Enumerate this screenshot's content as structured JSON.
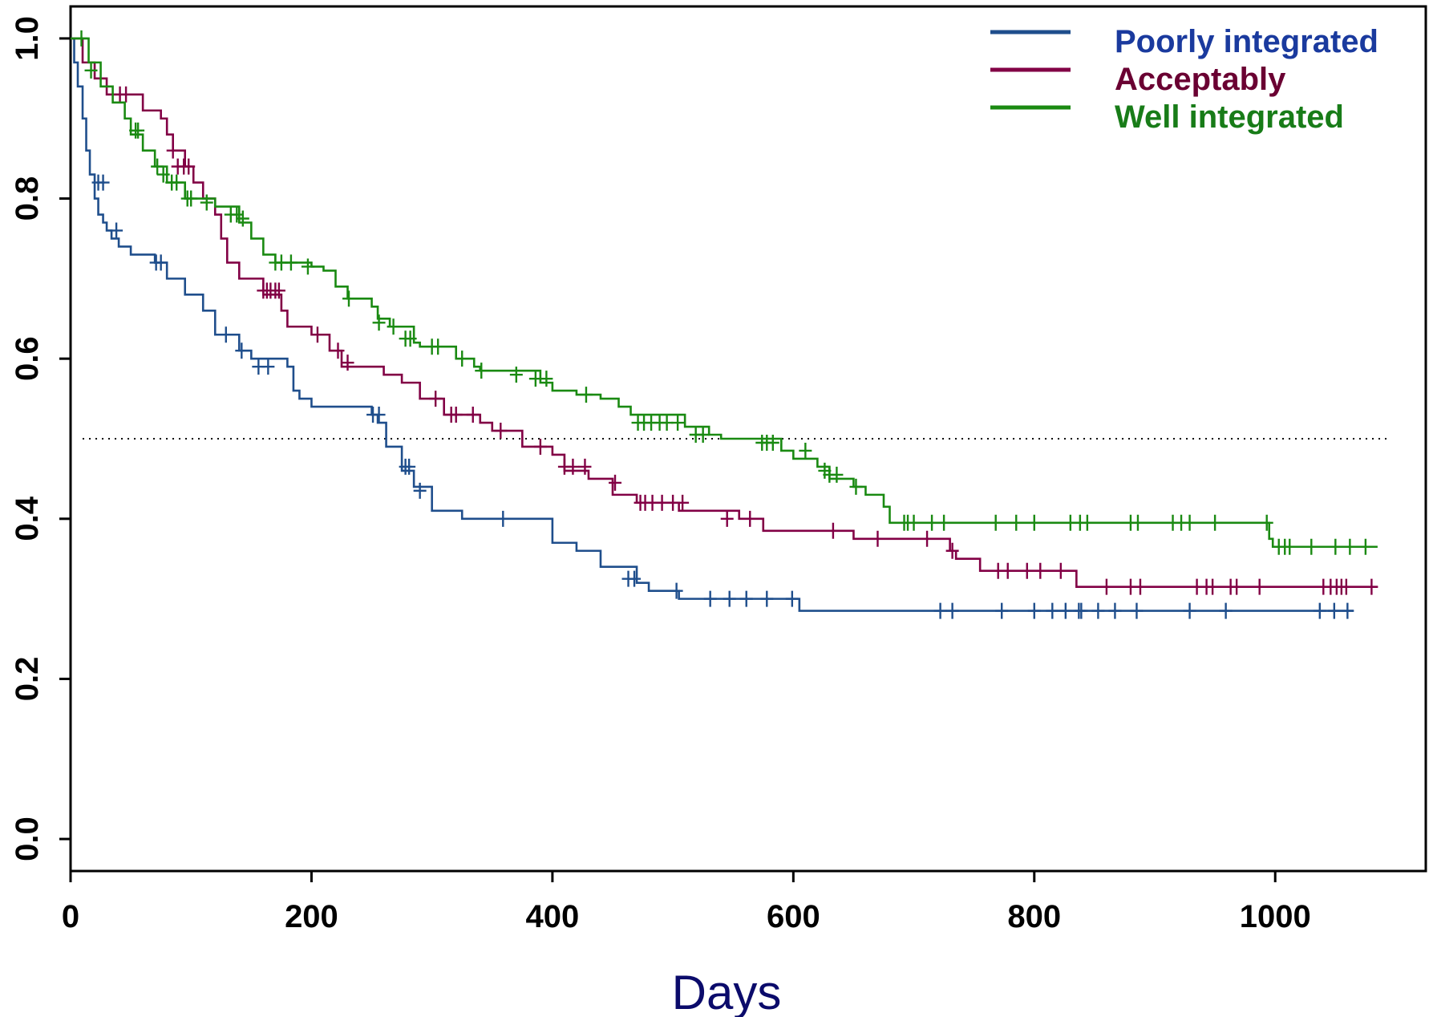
{
  "chart_data": {
    "type": "line",
    "xlabel": "Days",
    "ylabel": "",
    "xlim": [
      0,
      1125
    ],
    "ylim": [
      -0.04,
      1.04
    ],
    "x_ticks": [
      0,
      200,
      400,
      600,
      800,
      1000
    ],
    "x_tick_labels": [
      "0",
      "200",
      "400",
      "600",
      "800",
      "1000"
    ],
    "y_ticks": [
      0.0,
      0.2,
      0.4,
      0.6,
      0.8,
      1.0
    ],
    "y_tick_labels": [
      "0.0",
      "0.2",
      "0.4",
      "0.6",
      "0.8",
      "1.0"
    ],
    "grid": false,
    "legend_position": "top-right",
    "reference_line": {
      "y": 0.5,
      "style": "dotted"
    },
    "series": [
      {
        "name": "Poorly integrated",
        "color": "#1f4e8c",
        "label_color": "#1a3a9e",
        "steps": [
          [
            0,
            1.0
          ],
          [
            3,
            0.97
          ],
          [
            6,
            0.94
          ],
          [
            10,
            0.9
          ],
          [
            13,
            0.86
          ],
          [
            16,
            0.83
          ],
          [
            20,
            0.8
          ],
          [
            23,
            0.78
          ],
          [
            27,
            0.77
          ],
          [
            30,
            0.76
          ],
          [
            34,
            0.75
          ],
          [
            40,
            0.74
          ],
          [
            50,
            0.73
          ],
          [
            70,
            0.72
          ],
          [
            80,
            0.7
          ],
          [
            95,
            0.68
          ],
          [
            110,
            0.66
          ],
          [
            120,
            0.63
          ],
          [
            140,
            0.61
          ],
          [
            150,
            0.6
          ],
          [
            180,
            0.59
          ],
          [
            185,
            0.56
          ],
          [
            190,
            0.55
          ],
          [
            200,
            0.54
          ],
          [
            250,
            0.53
          ],
          [
            255,
            0.52
          ],
          [
            262,
            0.49
          ],
          [
            275,
            0.46
          ],
          [
            285,
            0.44
          ],
          [
            300,
            0.41
          ],
          [
            325,
            0.4
          ],
          [
            400,
            0.37
          ],
          [
            420,
            0.36
          ],
          [
            440,
            0.34
          ],
          [
            470,
            0.32
          ],
          [
            480,
            0.31
          ],
          [
            505,
            0.3
          ],
          [
            605,
            0.285
          ],
          [
            1065,
            0.285
          ]
        ],
        "censored": [
          [
            23,
            0.82
          ],
          [
            27,
            0.82
          ],
          [
            38,
            0.76
          ],
          [
            71,
            0.72
          ],
          [
            75,
            0.72
          ],
          [
            129,
            0.63
          ],
          [
            142,
            0.61
          ],
          [
            156,
            0.59
          ],
          [
            164,
            0.59
          ],
          [
            251,
            0.53
          ],
          [
            256,
            0.53
          ],
          [
            278,
            0.465
          ],
          [
            281,
            0.465
          ],
          [
            290,
            0.435
          ],
          [
            359,
            0.4
          ],
          [
            463,
            0.325
          ],
          [
            468,
            0.325
          ],
          [
            503,
            0.31
          ],
          [
            531,
            0.3
          ],
          [
            547,
            0.3
          ],
          [
            561,
            0.3
          ],
          [
            578,
            0.3
          ],
          [
            599,
            0.3
          ],
          [
            722,
            0.285
          ],
          [
            732,
            0.285
          ],
          [
            773,
            0.285
          ],
          [
            800,
            0.285
          ],
          [
            815,
            0.285
          ],
          [
            826,
            0.285
          ],
          [
            837,
            0.285
          ],
          [
            839,
            0.285
          ],
          [
            853,
            0.285
          ],
          [
            867,
            0.285
          ],
          [
            885,
            0.285
          ],
          [
            929,
            0.285
          ],
          [
            959,
            0.285
          ],
          [
            1037,
            0.285
          ],
          [
            1049,
            0.285
          ],
          [
            1060,
            0.285
          ]
        ]
      },
      {
        "name": "Acceptably",
        "color": "#820045",
        "label_color": "#6a0032",
        "steps": [
          [
            0,
            1.0
          ],
          [
            10,
            0.97
          ],
          [
            20,
            0.95
          ],
          [
            30,
            0.93
          ],
          [
            60,
            0.91
          ],
          [
            75,
            0.9
          ],
          [
            80,
            0.88
          ],
          [
            85,
            0.86
          ],
          [
            95,
            0.84
          ],
          [
            102,
            0.82
          ],
          [
            110,
            0.8
          ],
          [
            120,
            0.78
          ],
          [
            125,
            0.75
          ],
          [
            130,
            0.72
          ],
          [
            140,
            0.7
          ],
          [
            160,
            0.68
          ],
          [
            175,
            0.66
          ],
          [
            180,
            0.64
          ],
          [
            200,
            0.63
          ],
          [
            215,
            0.61
          ],
          [
            225,
            0.59
          ],
          [
            260,
            0.58
          ],
          [
            275,
            0.57
          ],
          [
            290,
            0.55
          ],
          [
            310,
            0.53
          ],
          [
            340,
            0.52
          ],
          [
            350,
            0.51
          ],
          [
            375,
            0.49
          ],
          [
            400,
            0.48
          ],
          [
            410,
            0.46
          ],
          [
            430,
            0.45
          ],
          [
            450,
            0.43
          ],
          [
            470,
            0.42
          ],
          [
            505,
            0.41
          ],
          [
            555,
            0.4
          ],
          [
            575,
            0.385
          ],
          [
            650,
            0.375
          ],
          [
            730,
            0.36
          ],
          [
            735,
            0.35
          ],
          [
            755,
            0.335
          ],
          [
            835,
            0.315
          ],
          [
            1085,
            0.315
          ]
        ],
        "censored": [
          [
            41,
            0.93
          ],
          [
            46,
            0.93
          ],
          [
            85,
            0.86
          ],
          [
            89,
            0.84
          ],
          [
            94,
            0.84
          ],
          [
            98,
            0.84
          ],
          [
            160,
            0.685
          ],
          [
            163,
            0.685
          ],
          [
            166,
            0.685
          ],
          [
            170,
            0.685
          ],
          [
            173,
            0.685
          ],
          [
            205,
            0.63
          ],
          [
            222,
            0.61
          ],
          [
            230,
            0.595
          ],
          [
            303,
            0.55
          ],
          [
            316,
            0.53
          ],
          [
            320,
            0.53
          ],
          [
            334,
            0.53
          ],
          [
            357,
            0.51
          ],
          [
            390,
            0.49
          ],
          [
            410,
            0.465
          ],
          [
            417,
            0.465
          ],
          [
            427,
            0.465
          ],
          [
            452,
            0.445
          ],
          [
            473,
            0.42
          ],
          [
            477,
            0.42
          ],
          [
            483,
            0.42
          ],
          [
            491,
            0.42
          ],
          [
            500,
            0.42
          ],
          [
            508,
            0.42
          ],
          [
            545,
            0.4
          ],
          [
            564,
            0.4
          ],
          [
            633,
            0.385
          ],
          [
            670,
            0.375
          ],
          [
            711,
            0.375
          ],
          [
            732,
            0.36
          ],
          [
            770,
            0.335
          ],
          [
            778,
            0.335
          ],
          [
            794,
            0.335
          ],
          [
            805,
            0.335
          ],
          [
            822,
            0.335
          ],
          [
            860,
            0.315
          ],
          [
            880,
            0.315
          ],
          [
            888,
            0.315
          ],
          [
            935,
            0.315
          ],
          [
            943,
            0.315
          ],
          [
            948,
            0.315
          ],
          [
            963,
            0.315
          ],
          [
            968,
            0.315
          ],
          [
            987,
            0.315
          ],
          [
            1040,
            0.315
          ],
          [
            1046,
            0.315
          ],
          [
            1051,
            0.315
          ],
          [
            1055,
            0.315
          ],
          [
            1059,
            0.315
          ],
          [
            1080,
            0.315
          ]
        ]
      },
      {
        "name": "Well integrated",
        "color": "#1a8a12",
        "label_color": "#187c18",
        "steps": [
          [
            0,
            1.0
          ],
          [
            15,
            0.97
          ],
          [
            25,
            0.94
          ],
          [
            35,
            0.92
          ],
          [
            45,
            0.9
          ],
          [
            50,
            0.88
          ],
          [
            60,
            0.86
          ],
          [
            70,
            0.84
          ],
          [
            80,
            0.82
          ],
          [
            95,
            0.8
          ],
          [
            120,
            0.79
          ],
          [
            140,
            0.77
          ],
          [
            150,
            0.75
          ],
          [
            160,
            0.73
          ],
          [
            170,
            0.72
          ],
          [
            200,
            0.715
          ],
          [
            210,
            0.71
          ],
          [
            220,
            0.69
          ],
          [
            230,
            0.675
          ],
          [
            250,
            0.665
          ],
          [
            255,
            0.65
          ],
          [
            265,
            0.64
          ],
          [
            285,
            0.62
          ],
          [
            290,
            0.615
          ],
          [
            320,
            0.6
          ],
          [
            335,
            0.59
          ],
          [
            340,
            0.585
          ],
          [
            390,
            0.57
          ],
          [
            400,
            0.56
          ],
          [
            420,
            0.555
          ],
          [
            440,
            0.55
          ],
          [
            455,
            0.54
          ],
          [
            465,
            0.53
          ],
          [
            510,
            0.515
          ],
          [
            530,
            0.505
          ],
          [
            540,
            0.5
          ],
          [
            590,
            0.485
          ],
          [
            600,
            0.475
          ],
          [
            620,
            0.465
          ],
          [
            630,
            0.45
          ],
          [
            650,
            0.44
          ],
          [
            660,
            0.43
          ],
          [
            675,
            0.415
          ],
          [
            680,
            0.395
          ],
          [
            995,
            0.375
          ],
          [
            998,
            0.365
          ],
          [
            1085,
            0.365
          ]
        ],
        "censored": [
          [
            9,
            1.0
          ],
          [
            17,
            0.96
          ],
          [
            54,
            0.885
          ],
          [
            56,
            0.885
          ],
          [
            72,
            0.84
          ],
          [
            77,
            0.83
          ],
          [
            84,
            0.82
          ],
          [
            88,
            0.82
          ],
          [
            97,
            0.8
          ],
          [
            100,
            0.8
          ],
          [
            113,
            0.795
          ],
          [
            133,
            0.78
          ],
          [
            138,
            0.78
          ],
          [
            143,
            0.775
          ],
          [
            170,
            0.72
          ],
          [
            175,
            0.72
          ],
          [
            183,
            0.72
          ],
          [
            197,
            0.715
          ],
          [
            231,
            0.675
          ],
          [
            256,
            0.645
          ],
          [
            268,
            0.64
          ],
          [
            278,
            0.625
          ],
          [
            282,
            0.625
          ],
          [
            300,
            0.615
          ],
          [
            305,
            0.615
          ],
          [
            325,
            0.6
          ],
          [
            341,
            0.585
          ],
          [
            370,
            0.58
          ],
          [
            386,
            0.575
          ],
          [
            395,
            0.575
          ],
          [
            428,
            0.555
          ],
          [
            471,
            0.52
          ],
          [
            476,
            0.52
          ],
          [
            482,
            0.52
          ],
          [
            489,
            0.52
          ],
          [
            495,
            0.52
          ],
          [
            504,
            0.52
          ],
          [
            519,
            0.505
          ],
          [
            525,
            0.505
          ],
          [
            574,
            0.495
          ],
          [
            578,
            0.495
          ],
          [
            583,
            0.495
          ],
          [
            610,
            0.485
          ],
          [
            626,
            0.46
          ],
          [
            630,
            0.455
          ],
          [
            636,
            0.455
          ],
          [
            652,
            0.44
          ],
          [
            692,
            0.395
          ],
          [
            695,
            0.395
          ],
          [
            700,
            0.395
          ],
          [
            715,
            0.395
          ],
          [
            725,
            0.395
          ],
          [
            768,
            0.395
          ],
          [
            785,
            0.395
          ],
          [
            800,
            0.395
          ],
          [
            830,
            0.395
          ],
          [
            838,
            0.395
          ],
          [
            844,
            0.395
          ],
          [
            880,
            0.395
          ],
          [
            886,
            0.395
          ],
          [
            915,
            0.395
          ],
          [
            922,
            0.395
          ],
          [
            929,
            0.395
          ],
          [
            950,
            0.395
          ],
          [
            993,
            0.395
          ],
          [
            1003,
            0.365
          ],
          [
            1008,
            0.365
          ],
          [
            1012,
            0.365
          ],
          [
            1030,
            0.365
          ],
          [
            1050,
            0.365
          ],
          [
            1062,
            0.365
          ],
          [
            1075,
            0.365
          ]
        ]
      }
    ]
  }
}
